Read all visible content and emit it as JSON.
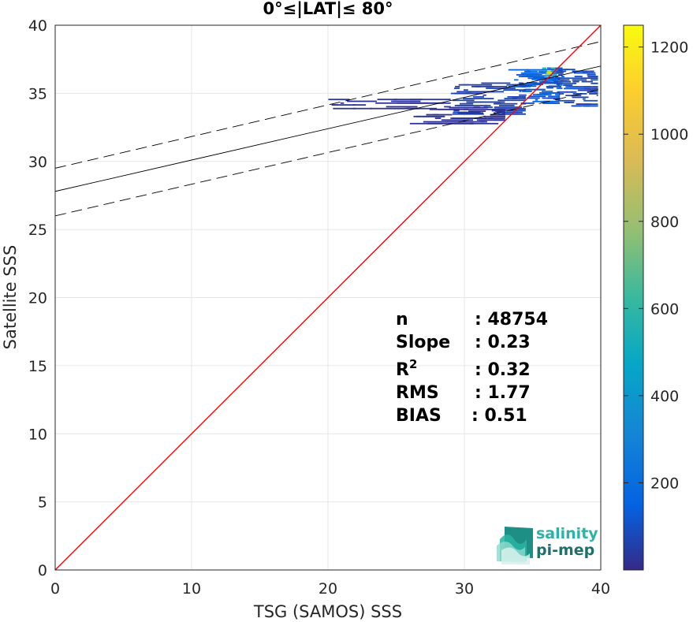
{
  "chart_data": {
    "type": "heatmap",
    "title": "0°≤|LAT|≤ 80°",
    "xlabel": "TSG (SAMOS) SSS",
    "ylabel": "Satellite SSS",
    "xlim": [
      0,
      40
    ],
    "ylim": [
      0,
      40
    ],
    "xticks": [
      "0",
      "10",
      "20",
      "30",
      "40"
    ],
    "yticks": [
      "0",
      "5",
      "10",
      "15",
      "20",
      "25",
      "30",
      "35",
      "40"
    ],
    "grid": true,
    "colorbar": {
      "range": [
        0,
        1250
      ],
      "ticks": [
        "200",
        "400",
        "600",
        "800",
        "1000",
        "1200"
      ],
      "colormap": "parula"
    },
    "one_to_one_line": {
      "x": [
        0,
        40
      ],
      "y": [
        0,
        40
      ],
      "color": "#ff0000"
    },
    "regression_line": {
      "x": [
        0,
        40
      ],
      "y": [
        27.8,
        37.0
      ],
      "color": "#000000"
    },
    "confidence_upper": {
      "x": [
        0,
        40
      ],
      "y": [
        29.5,
        38.8
      ],
      "color": "#000000"
    },
    "confidence_lower": {
      "x": [
        0,
        40
      ],
      "y": [
        26.0,
        35.3
      ],
      "color": "#000000"
    },
    "density_clusters": [
      {
        "x": [
          33.0,
          37.2
        ],
        "y": [
          35.3,
          36.9
        ],
        "level": 150
      },
      {
        "x": [
          34.0,
          37.0
        ],
        "y": [
          34.2,
          36.2
        ],
        "level": 120
      },
      {
        "x": [
          29.0,
          34.5
        ],
        "y": [
          33.4,
          35.8
        ],
        "level": 60
      },
      {
        "x": [
          36.5,
          39.8
        ],
        "y": [
          34.0,
          36.8
        ],
        "level": 80
      },
      {
        "x": [
          20.0,
          29.0
        ],
        "y": [
          33.8,
          34.6
        ],
        "level": 25
      },
      {
        "x": [
          26.0,
          33.0
        ],
        "y": [
          32.7,
          34.0
        ],
        "level": 20
      },
      {
        "x": [
          35.5,
          36.8
        ],
        "y": [
          36.2,
          36.9
        ],
        "level": 450
      },
      {
        "x": [
          36.0,
          36.4
        ],
        "y": [
          36.4,
          36.7
        ],
        "level": 1000
      }
    ],
    "stats": [
      {
        "label": "n",
        "value": ": 48754"
      },
      {
        "label": "Slope",
        "value": ": 0.23"
      },
      {
        "label": "R",
        "sup": "2",
        "value": ": 0.32"
      },
      {
        "label": "RMS",
        "value": ": 1.77"
      },
      {
        "label": "BIAS",
        "value": ": 0.51"
      }
    ]
  },
  "logo": {
    "line1": "salinity",
    "line2": "pi-mep",
    "colors": {
      "line1": "#2bb3a3",
      "line2": "#1f6f6a"
    }
  }
}
